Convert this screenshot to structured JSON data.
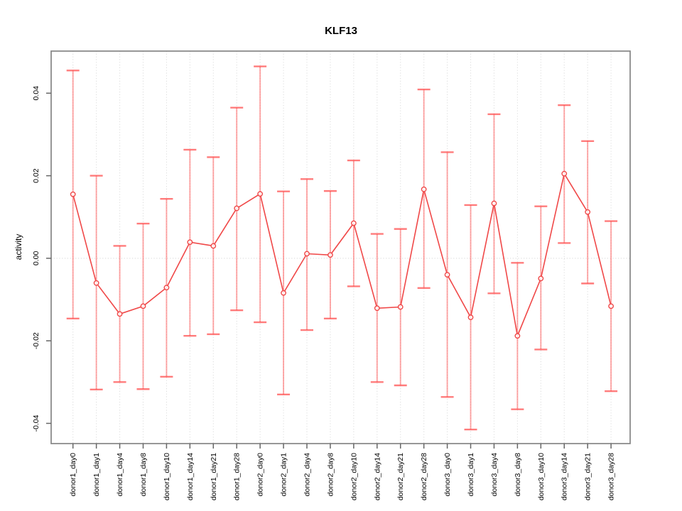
{
  "figure": {
    "title": "KLF13"
  },
  "chart_data": {
    "type": "line",
    "title": "KLF13",
    "xlabel": "",
    "ylabel": "activity",
    "legend": "none",
    "grid": "vertical-dotted",
    "zero_line": true,
    "marker": "open-circle",
    "categories": [
      "donor1_day0",
      "donor1_day1",
      "donor1_day4",
      "donor1_day8",
      "donor1_day10",
      "donor1_day14",
      "donor1_day21",
      "donor1_day28",
      "donor2_day0",
      "donor2_day1",
      "donor2_day4",
      "donor2_day8",
      "donor2_day10",
      "donor2_day14",
      "donor2_day21",
      "donor2_day28",
      "donor3_day0",
      "donor3_day1",
      "donor3_day4",
      "donor3_day8",
      "donor3_day10",
      "donor3_day14",
      "donor3_day21",
      "donor3_day28"
    ],
    "values": [
      0.0155,
      -0.006,
      -0.0135,
      -0.0116,
      -0.0071,
      0.0039,
      0.003,
      0.0121,
      0.0156,
      -0.0084,
      0.0011,
      0.0008,
      0.0085,
      -0.0121,
      -0.0118,
      0.0167,
      -0.004,
      -0.0143,
      0.0133,
      -0.0188,
      -0.0049,
      0.0205,
      0.0112,
      -0.0116
    ],
    "upper": [
      0.0455,
      0.02,
      0.003,
      0.0084,
      0.0144,
      0.0263,
      0.0245,
      0.0365,
      0.0465,
      0.0162,
      0.0192,
      0.0163,
      0.0237,
      0.0059,
      0.0071,
      0.0409,
      0.0257,
      0.0129,
      0.0349,
      -0.0011,
      0.0126,
      0.0371,
      0.0284,
      0.009
    ],
    "lower": [
      -0.0146,
      -0.0318,
      -0.03,
      -0.0317,
      -0.0287,
      -0.0188,
      -0.0184,
      -0.0126,
      -0.0155,
      -0.033,
      -0.0174,
      -0.0146,
      -0.0068,
      -0.03,
      -0.0308,
      -0.0072,
      -0.0336,
      -0.0415,
      -0.0085,
      -0.0366,
      -0.0221,
      0.0037,
      -0.0061,
      -0.0322
    ],
    "yticks": [
      -0.04,
      -0.02,
      0,
      0.02,
      0.04
    ],
    "ytick_labels": [
      "-0.04",
      "-0.02",
      "0.00",
      "0.02",
      "0.04"
    ],
    "ylim": [
      -0.0449,
      0.0502
    ],
    "colors": {
      "line": "#f04848",
      "error": "#ff5050",
      "grid": "#dedede",
      "zero": "#d9d9d9",
      "box": "#858585",
      "tick": "#666666",
      "text": "#000000"
    }
  }
}
